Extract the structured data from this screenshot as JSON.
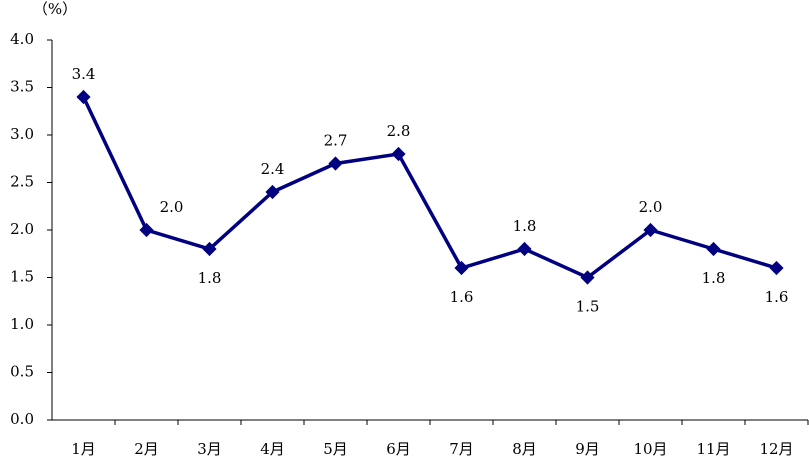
{
  "chart_data": {
    "type": "line",
    "unit_label": "（%）",
    "categories": [
      "1月",
      "2月",
      "3月",
      "4月",
      "5月",
      "6月",
      "7月",
      "8月",
      "9月",
      "10月",
      "11月",
      "12月"
    ],
    "series": [
      {
        "color": "#000080",
        "values": [
          3.4,
          2.0,
          1.8,
          2.4,
          2.7,
          2.8,
          1.6,
          1.8,
          1.5,
          2.0,
          1.8,
          1.6
        ],
        "value_labels": [
          "3.4",
          "2.0",
          "1.8",
          "2.4",
          "2.7",
          "2.8",
          "1.6",
          "1.8",
          "1.5",
          "2.0",
          "1.8",
          "1.6"
        ]
      }
    ],
    "ylim": [
      0,
      4
    ],
    "yticks": [
      {
        "value": 0,
        "label": "0.0"
      },
      {
        "value": 0.5,
        "label": "0.5"
      },
      {
        "value": 1,
        "label": "1.0"
      },
      {
        "value": 1.5,
        "label": "1.5"
      },
      {
        "value": 2,
        "label": "2.0"
      },
      {
        "value": 2.5,
        "label": "2.5"
      },
      {
        "value": 3,
        "label": "3.0"
      },
      {
        "value": 3.5,
        "label": "3.5"
      },
      {
        "value": 4,
        "label": "4.0"
      }
    ]
  }
}
